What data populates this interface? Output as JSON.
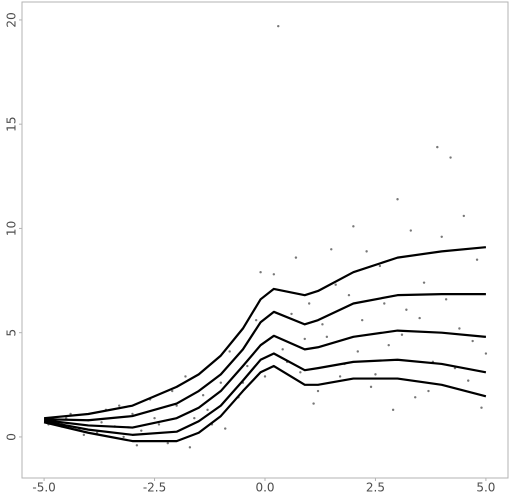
{
  "chart_data": {
    "type": "scatter",
    "x": [
      -4.8,
      -4.6,
      -4.4,
      -4.2,
      -4.0,
      -3.8,
      -3.6,
      -3.4,
      -3.2,
      -3.0,
      -2.8,
      -2.6,
      -2.4,
      -2.2,
      -2.0,
      -1.8,
      -1.6,
      -1.4,
      -1.2,
      -1.0,
      -0.8,
      -0.6,
      -0.4,
      -0.2,
      0.0,
      0.2,
      0.4,
      0.6,
      0.8,
      1.0,
      1.2,
      1.4,
      1.6,
      1.8,
      2.0,
      2.2,
      2.4,
      2.6,
      2.8,
      3.0,
      3.2,
      3.4,
      3.6,
      3.8,
      4.0,
      4.2,
      4.4,
      4.6,
      4.8,
      5.0,
      -4.9,
      -4.5,
      -4.1,
      -3.7,
      -3.3,
      -2.9,
      -2.5,
      -2.1,
      -1.7,
      -1.3,
      -0.9,
      -0.5,
      -0.1,
      0.3,
      0.5,
      0.7,
      0.9,
      1.1,
      1.3,
      1.5,
      1.7,
      1.9,
      2.1,
      2.3,
      2.5,
      2.7,
      2.9,
      3.1,
      3.3,
      3.5,
      3.7,
      3.9,
      4.1,
      4.3,
      4.5,
      4.7,
      4.9
    ],
    "values": [
      0.9,
      0.5,
      1.1,
      0.4,
      0.8,
      0.2,
      1.3,
      0.5,
      0.0,
      1.1,
      0.3,
      1.8,
      0.6,
      -0.3,
      1.5,
      2.9,
      0.9,
      2.0,
      0.6,
      2.6,
      4.1,
      1.9,
      3.4,
      5.6,
      2.9,
      7.8,
      4.2,
      5.9,
      3.1,
      6.4,
      2.2,
      4.8,
      7.3,
      3.5,
      10.1,
      5.6,
      2.4,
      8.2,
      4.4,
      11.4,
      6.1,
      1.9,
      7.4,
      3.6,
      9.6,
      13.4,
      5.2,
      2.7,
      8.5,
      4.0,
      0.6,
      0.9,
      0.1,
      0.7,
      1.5,
      -0.4,
      0.9,
      2.2,
      -0.5,
      1.3,
      0.4,
      2.6,
      7.9,
      19.7,
      3.6,
      8.6,
      4.7,
      1.6,
      5.4,
      9.0,
      2.9,
      6.8,
      4.1,
      8.9,
      3.0,
      6.4,
      1.3,
      4.9,
      9.9,
      5.7,
      2.2,
      13.9,
      6.6,
      3.3,
      10.6,
      4.6,
      1.4
    ],
    "color": "#555555",
    "lines": {
      "x": [
        -5,
        -4,
        -3,
        -2,
        -1.5,
        -1,
        -0.5,
        -0.1,
        0.2,
        0.9,
        1.2,
        2,
        3,
        4,
        5
      ],
      "series": [
        {
          "color": "#000000",
          "values": [
            0.9,
            1.1,
            1.5,
            2.4,
            3.0,
            3.9,
            5.2,
            6.6,
            7.1,
            6.8,
            7.0,
            7.9,
            8.6,
            8.9,
            9.1
          ]
        },
        {
          "color": "#000000",
          "values": [
            0.85,
            0.8,
            1.0,
            1.6,
            2.2,
            3.0,
            4.2,
            5.5,
            6.0,
            5.4,
            5.6,
            6.4,
            6.8,
            6.85,
            6.85
          ]
        },
        {
          "color": "#000000",
          "values": [
            0.8,
            0.55,
            0.45,
            0.9,
            1.4,
            2.2,
            3.4,
            4.4,
            4.85,
            4.2,
            4.3,
            4.8,
            5.1,
            5.0,
            4.8
          ]
        },
        {
          "color": "#000000",
          "values": [
            0.75,
            0.35,
            0.1,
            0.25,
            0.75,
            1.5,
            2.7,
            3.7,
            4.0,
            3.2,
            3.3,
            3.6,
            3.7,
            3.5,
            3.1
          ]
        },
        {
          "color": "#000000",
          "values": [
            0.7,
            0.2,
            -0.2,
            -0.2,
            0.2,
            1.0,
            2.2,
            3.1,
            3.4,
            2.5,
            2.5,
            2.8,
            2.8,
            2.5,
            1.95
          ]
        }
      ]
    },
    "xlim": [
      -5.5,
      5.5
    ],
    "ylim": [
      -1.97,
      20.86
    ],
    "xticks": [
      {
        "value": -5,
        "label": "-5.0"
      },
      {
        "value": -2.5,
        "label": "-2.5"
      },
      {
        "value": 0,
        "label": "0.0"
      },
      {
        "value": 2.5,
        "label": "2.5"
      },
      {
        "value": 5,
        "label": "5.0"
      }
    ],
    "yticks": [
      0,
      5,
      10,
      15,
      20
    ]
  }
}
